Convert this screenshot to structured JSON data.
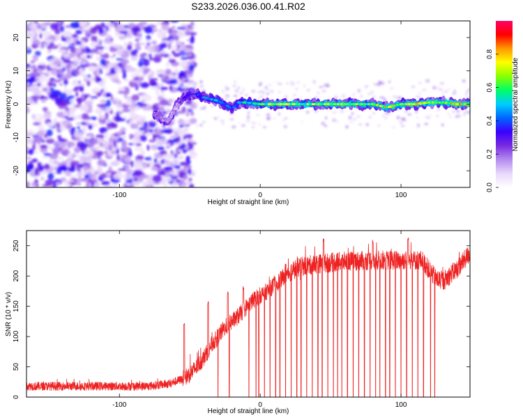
{
  "figure_title": "S233.2026.036.00.41.R02",
  "chart_data": [
    {
      "type": "heatmap",
      "title": "S233.2026.036.00.41.R02",
      "xlabel": "Height of straight line (km)",
      "ylabel": "Frequency (Hz)",
      "xlim": [
        -166,
        149
      ],
      "ylim": [
        -25,
        25
      ],
      "x_ticks": [
        -100,
        0,
        100
      ],
      "y_ticks": [
        -20,
        -10,
        0,
        10,
        20
      ],
      "colorbar": {
        "label": "Normalized spectral amplitude",
        "range": [
          0,
          1
        ],
        "ticks": [
          0.0,
          0.2,
          0.4,
          0.6,
          0.8
        ],
        "colors": [
          "#ffffff",
          "#e9d8fb",
          "#b48cf0",
          "#7a2ce0",
          "#3b00ff",
          "#0066ff",
          "#00ccff",
          "#00ff66",
          "#88ff00",
          "#ffff00",
          "#ff9900",
          "#ff0000",
          "#ff0066"
        ]
      },
      "noise_region_x": [
        -166,
        -53
      ],
      "carrier_track": [
        {
          "x": -75,
          "y": -3,
          "amp": 0.25
        },
        {
          "x": -70,
          "y": -4,
          "amp": 0.2
        },
        {
          "x": -65,
          "y": -5,
          "amp": 0.2
        },
        {
          "x": -60,
          "y": -1,
          "amp": 0.15
        },
        {
          "x": -54,
          "y": 2,
          "amp": 0.35
        },
        {
          "x": -50,
          "y": 3,
          "amp": 0.35
        },
        {
          "x": -45,
          "y": 3,
          "amp": 0.4
        },
        {
          "x": -40,
          "y": 2,
          "amp": 0.45
        },
        {
          "x": -35,
          "y": 1.5,
          "amp": 0.5
        },
        {
          "x": -30,
          "y": 1,
          "amp": 0.55
        },
        {
          "x": -25,
          "y": 0,
          "amp": 0.5
        },
        {
          "x": -20,
          "y": -1.5,
          "amp": 0.4
        },
        {
          "x": -15,
          "y": 0.5,
          "amp": 0.5
        },
        {
          "x": -10,
          "y": 0.5,
          "amp": 0.6
        },
        {
          "x": 0,
          "y": 0,
          "amp": 0.65
        },
        {
          "x": 10,
          "y": 0,
          "amp": 0.75
        },
        {
          "x": 20,
          "y": 0,
          "amp": 0.8
        },
        {
          "x": 30,
          "y": 0,
          "amp": 0.7
        },
        {
          "x": 40,
          "y": 0,
          "amp": 0.75
        },
        {
          "x": 50,
          "y": 0,
          "amp": 0.8
        },
        {
          "x": 60,
          "y": 0,
          "amp": 0.78
        },
        {
          "x": 70,
          "y": 0,
          "amp": 0.72
        },
        {
          "x": 80,
          "y": 0,
          "amp": 0.7
        },
        {
          "x": 90,
          "y": -1,
          "amp": 0.8
        },
        {
          "x": 100,
          "y": 0,
          "amp": 0.78
        },
        {
          "x": 110,
          "y": 0,
          "amp": 0.82
        },
        {
          "x": 120,
          "y": 0.5,
          "amp": 0.8
        },
        {
          "x": 130,
          "y": 0.5,
          "amp": 0.78
        },
        {
          "x": 140,
          "y": 0,
          "amp": 0.82
        },
        {
          "x": 149,
          "y": 0,
          "amp": 0.82
        }
      ]
    },
    {
      "type": "line",
      "xlabel": "Height of straight line (km)",
      "ylabel": "SNR (10 * v/v)",
      "xlim": [
        -166,
        149
      ],
      "ylim": [
        0,
        275
      ],
      "x_ticks": [
        -100,
        0,
        100
      ],
      "y_ticks": [
        0,
        50,
        100,
        150,
        200,
        250
      ],
      "series": [
        {
          "name": "SNR",
          "color": "#ee2222",
          "trend": [
            {
              "x": -166,
              "y": 18
            },
            {
              "x": -120,
              "y": 18
            },
            {
              "x": -80,
              "y": 18
            },
            {
              "x": -65,
              "y": 22
            },
            {
              "x": -55,
              "y": 30
            },
            {
              "x": -50,
              "y": 38
            },
            {
              "x": -45,
              "y": 50
            },
            {
              "x": -40,
              "y": 65
            },
            {
              "x": -35,
              "y": 85
            },
            {
              "x": -30,
              "y": 100
            },
            {
              "x": -25,
              "y": 115
            },
            {
              "x": -20,
              "y": 125
            },
            {
              "x": -15,
              "y": 135
            },
            {
              "x": -10,
              "y": 148
            },
            {
              "x": -5,
              "y": 160
            },
            {
              "x": 0,
              "y": 168
            },
            {
              "x": 5,
              "y": 175
            },
            {
              "x": 10,
              "y": 185
            },
            {
              "x": 15,
              "y": 195
            },
            {
              "x": 20,
              "y": 205
            },
            {
              "x": 25,
              "y": 212
            },
            {
              "x": 30,
              "y": 216
            },
            {
              "x": 40,
              "y": 220
            },
            {
              "x": 60,
              "y": 224
            },
            {
              "x": 80,
              "y": 226
            },
            {
              "x": 100,
              "y": 226
            },
            {
              "x": 115,
              "y": 226
            },
            {
              "x": 120,
              "y": 210
            },
            {
              "x": 125,
              "y": 195
            },
            {
              "x": 130,
              "y": 192
            },
            {
              "x": 140,
              "y": 212
            },
            {
              "x": 149,
              "y": 238
            }
          ],
          "spikes_up": [
            {
              "x": -54,
              "y": 122
            },
            {
              "x": -37,
              "y": 160
            },
            {
              "x": -23,
              "y": 175
            },
            {
              "x": -12,
              "y": 183
            },
            {
              "x": 18,
              "y": 222
            },
            {
              "x": 45,
              "y": 262
            },
            {
              "x": 80,
              "y": 260
            },
            {
              "x": 105,
              "y": 265
            }
          ],
          "dropouts_x": [
            -30,
            -22,
            -8,
            -3,
            -1,
            3,
            7,
            11,
            14,
            18,
            22,
            26,
            29,
            33,
            37,
            41,
            44,
            48,
            52,
            55,
            58,
            62,
            66,
            70,
            74,
            78,
            82,
            85,
            89,
            92,
            96,
            100,
            104,
            108,
            112,
            116,
            121,
            124
          ]
        }
      ]
    }
  ]
}
